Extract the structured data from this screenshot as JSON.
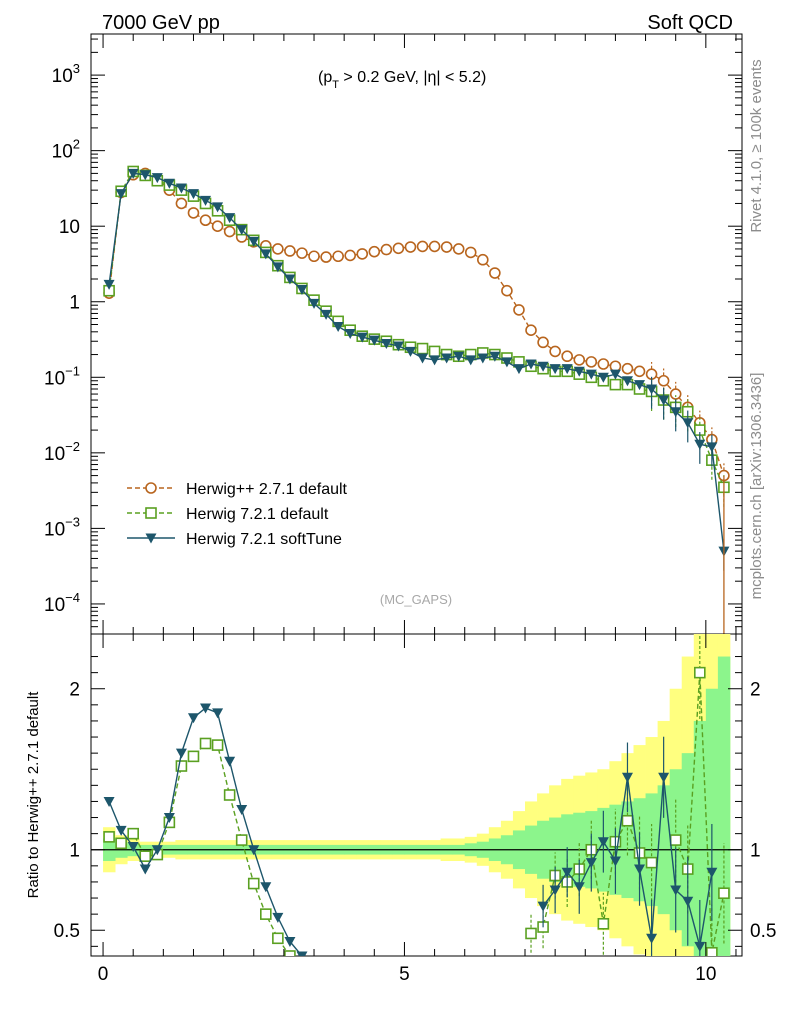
{
  "header": {
    "left": "7000 GeV pp",
    "right": "Soft QCD",
    "cuts_p": "(p",
    "cuts_t": "T",
    "cuts_rest": " > 0.2 GeV, |η| < 5.2)"
  },
  "side": {
    "rivet": "Rivet 4.1.0, ≥ 100k events",
    "mcplots": "mcplots.cern.ch [arXiv:1306.3436]"
  },
  "watermark": "(MC_GAPS)",
  "chart_data": [
    {
      "type": "line",
      "id": "main",
      "title": "",
      "yscale": "log",
      "xlim": [
        -0.2,
        10.6
      ],
      "ylim": [
        4e-05,
        3500
      ],
      "y_ticks": [
        {
          "value": 0.0001,
          "base": "10",
          "exp": "−4"
        },
        {
          "value": 0.001,
          "base": "10",
          "exp": "−3"
        },
        {
          "value": 0.01,
          "base": "10",
          "exp": "−2"
        },
        {
          "value": 0.1,
          "base": "10",
          "exp": "−1"
        },
        {
          "value": 1,
          "base": "1",
          "exp": ""
        },
        {
          "value": 10,
          "base": "10",
          "exp": ""
        },
        {
          "value": 100,
          "base": "10",
          "exp": "2"
        },
        {
          "value": 1000,
          "base": "10",
          "exp": "3"
        }
      ],
      "x": [
        0.1,
        0.3,
        0.5,
        0.7,
        0.9,
        1.1,
        1.3,
        1.5,
        1.7,
        1.9,
        2.1,
        2.3,
        2.5,
        2.7,
        2.9,
        3.1,
        3.3,
        3.5,
        3.7,
        3.9,
        4.1,
        4.3,
        4.5,
        4.7,
        4.9,
        5.1,
        5.3,
        5.5,
        5.7,
        5.9,
        6.1,
        6.3,
        6.5,
        6.7,
        6.9,
        7.1,
        7.3,
        7.5,
        7.7,
        7.9,
        8.1,
        8.3,
        8.5,
        8.7,
        8.9,
        9.1,
        9.3,
        9.5,
        9.7,
        9.9,
        10.1,
        10.3
      ],
      "series": [
        {
          "name": "Herwig++ 2.7.1 default",
          "color": "#b8651e",
          "marker": "circle",
          "dash": true,
          "values": [
            1.3,
            28,
            48,
            50,
            42,
            30,
            20,
            15,
            12,
            10,
            8.5,
            7.2,
            6.2,
            5.5,
            5.0,
            4.7,
            4.4,
            4.0,
            3.9,
            4.0,
            4.1,
            4.3,
            4.6,
            4.9,
            5.1,
            5.3,
            5.4,
            5.4,
            5.3,
            5.0,
            4.5,
            3.6,
            2.4,
            1.4,
            0.78,
            0.42,
            0.29,
            0.22,
            0.19,
            0.17,
            0.16,
            0.15,
            0.14,
            0.13,
            0.12,
            0.11,
            0.09,
            0.06,
            0.04,
            0.025,
            0.015,
            0.005
          ]
        },
        {
          "name": "Herwig 7.2.1 default",
          "color": "#5aa021",
          "marker": "square",
          "dash": true,
          "values": [
            1.4,
            29,
            53,
            47,
            40,
            35,
            30,
            25,
            20,
            16,
            12,
            9,
            6.5,
            4.5,
            3.0,
            2.1,
            1.5,
            1.05,
            0.75,
            0.55,
            0.42,
            0.35,
            0.32,
            0.3,
            0.27,
            0.25,
            0.24,
            0.22,
            0.2,
            0.19,
            0.2,
            0.21,
            0.2,
            0.18,
            0.16,
            0.14,
            0.13,
            0.12,
            0.12,
            0.11,
            0.1,
            0.09,
            0.08,
            0.08,
            0.07,
            0.065,
            0.05,
            0.04,
            0.035,
            0.02,
            0.008,
            0.0035
          ]
        },
        {
          "name": "Herwig 7.2.1 softTune",
          "color": "#1d566b",
          "marker": "triangle",
          "dash": false,
          "values": [
            1.7,
            27,
            50,
            48,
            44,
            37,
            32,
            27,
            22,
            18,
            13,
            9,
            6.3,
            4.3,
            2.9,
            2.0,
            1.45,
            0.95,
            0.68,
            0.47,
            0.38,
            0.34,
            0.31,
            0.28,
            0.26,
            0.22,
            0.18,
            0.17,
            0.18,
            0.19,
            0.17,
            0.18,
            0.19,
            0.16,
            0.13,
            0.15,
            0.14,
            0.13,
            0.13,
            0.12,
            0.11,
            0.1,
            0.11,
            0.09,
            0.08,
            0.07,
            0.05,
            0.035,
            0.025,
            0.013,
            0.012,
            0.0005
          ]
        }
      ]
    },
    {
      "type": "line",
      "id": "ratio",
      "ylabel": "Ratio to Herwig++ 2.7.1 default",
      "xlim": [
        -0.2,
        10.6
      ],
      "ylim": [
        0.34,
        2.34
      ],
      "x_ticks": [
        {
          "value": 0,
          "label": "0"
        },
        {
          "value": 5,
          "label": "5"
        },
        {
          "value": 10,
          "label": "10"
        }
      ],
      "y_ticks": [
        {
          "value": 0.5,
          "label": "0.5"
        },
        {
          "value": 1,
          "label": "1"
        },
        {
          "value": 2,
          "label": "2"
        }
      ],
      "x": [
        0.1,
        0.3,
        0.5,
        0.7,
        0.9,
        1.1,
        1.3,
        1.5,
        1.7,
        1.9,
        2.1,
        2.3,
        2.5,
        2.7,
        2.9,
        3.1,
        3.3,
        3.5,
        3.7,
        3.9,
        4.1,
        4.3,
        4.5,
        4.7,
        4.9,
        5.1,
        5.3,
        5.5,
        5.7,
        5.9,
        6.1,
        6.3,
        6.5,
        6.7,
        6.9,
        7.1,
        7.3,
        7.5,
        7.7,
        7.9,
        8.1,
        8.3,
        8.5,
        8.7,
        8.9,
        9.1,
        9.3,
        9.5,
        9.7,
        9.9,
        10.1,
        10.3
      ],
      "band_inner": [
        0.07,
        0.05,
        0.04,
        0.03,
        0.03,
        0.03,
        0.03,
        0.03,
        0.03,
        0.03,
        0.03,
        0.03,
        0.03,
        0.03,
        0.03,
        0.03,
        0.03,
        0.03,
        0.03,
        0.03,
        0.03,
        0.03,
        0.03,
        0.03,
        0.03,
        0.03,
        0.03,
        0.03,
        0.03,
        0.03,
        0.04,
        0.05,
        0.07,
        0.09,
        0.12,
        0.15,
        0.18,
        0.2,
        0.22,
        0.23,
        0.24,
        0.26,
        0.28,
        0.3,
        0.32,
        0.35,
        0.4,
        0.5,
        0.6,
        0.8,
        1.0,
        1.2
      ],
      "band_outer": [
        0.14,
        0.09,
        0.07,
        0.05,
        0.05,
        0.05,
        0.06,
        0.06,
        0.06,
        0.06,
        0.06,
        0.06,
        0.06,
        0.06,
        0.06,
        0.06,
        0.06,
        0.06,
        0.06,
        0.06,
        0.06,
        0.06,
        0.06,
        0.06,
        0.06,
        0.06,
        0.06,
        0.06,
        0.07,
        0.07,
        0.08,
        0.1,
        0.14,
        0.18,
        0.24,
        0.3,
        0.35,
        0.4,
        0.44,
        0.46,
        0.48,
        0.5,
        0.55,
        0.6,
        0.65,
        0.7,
        0.8,
        1.0,
        1.2,
        1.6,
        2.0,
        2.4
      ],
      "series": [
        {
          "name": "Herwig 7.2.1 default",
          "color": "#5aa021",
          "marker": "square",
          "dash": true,
          "values": [
            1.08,
            1.04,
            1.1,
            0.96,
            0.97,
            1.17,
            1.52,
            1.58,
            1.66,
            1.65,
            1.34,
            1.06,
            0.79,
            0.6,
            0.45,
            0.34,
            null,
            null,
            null,
            null,
            null,
            null,
            null,
            null,
            null,
            null,
            null,
            null,
            null,
            null,
            null,
            null,
            null,
            null,
            null,
            0.48,
            0.52,
            0.84,
            0.8,
            0.88,
            1.0,
            0.54,
            1.05,
            1.18,
            0.98,
            0.92,
            null,
            1.06,
            0.88,
            2.1,
            0.36,
            0.73
          ]
        },
        {
          "name": "Herwig 7.2.1 softTune",
          "color": "#1d566b",
          "marker": "triangle",
          "dash": false,
          "values": [
            1.3,
            1.12,
            1.02,
            0.88,
            1.0,
            1.2,
            1.6,
            1.82,
            1.88,
            1.85,
            1.55,
            1.25,
            1.0,
            0.77,
            0.58,
            0.43,
            0.34,
            null,
            null,
            null,
            null,
            null,
            null,
            null,
            null,
            null,
            null,
            null,
            null,
            null,
            null,
            null,
            null,
            null,
            null,
            null,
            0.65,
            0.75,
            0.86,
            0.77,
            0.92,
            1.05,
            0.93,
            1.45,
            0.88,
            0.45,
            1.45,
            0.75,
            0.68,
            0.4,
            0.86,
            null
          ]
        }
      ]
    }
  ]
}
